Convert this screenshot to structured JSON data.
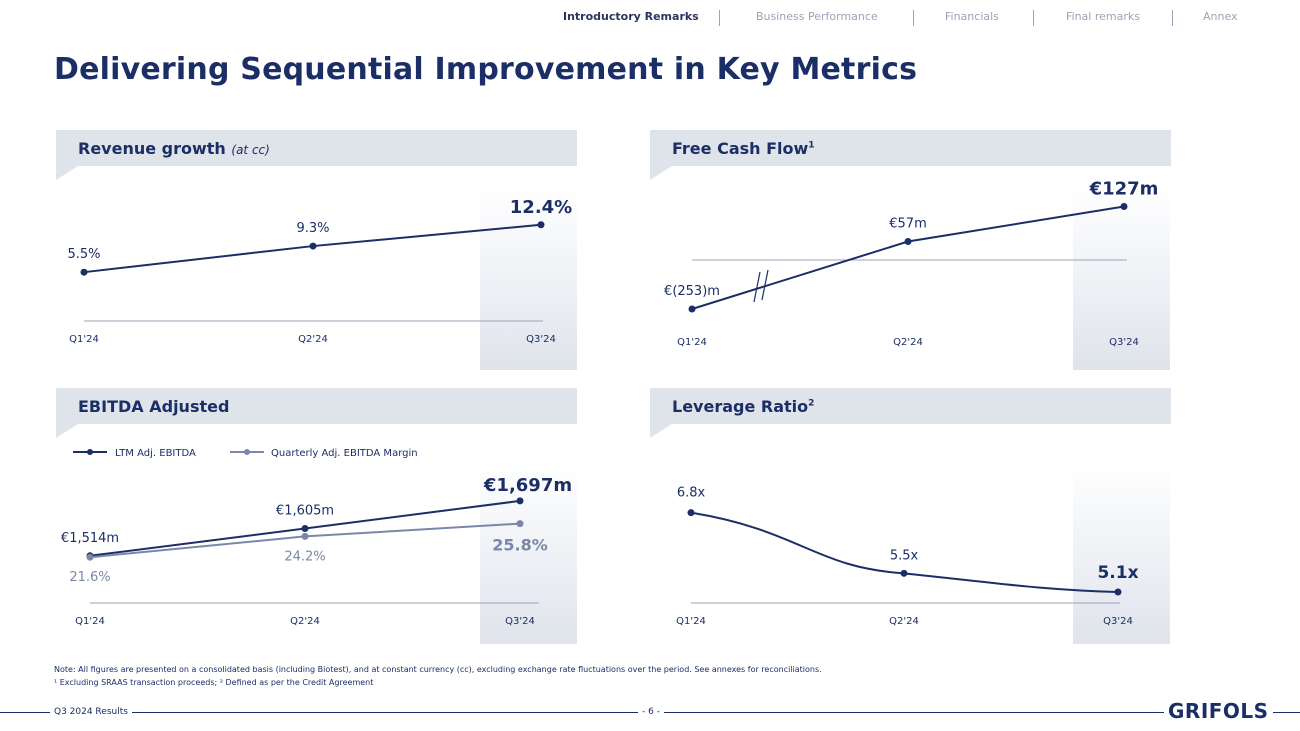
{
  "nav": {
    "items": [
      "Introductory Remarks",
      "Business Performance",
      "Financials",
      "Final remarks",
      "Annex"
    ],
    "active": 0
  },
  "page": {
    "title": "Delivering Sequential Improvement in Key Metrics",
    "notes": {
      "line1": "Note: All figures are presented on a consolidated basis (including Biotest), and at constant currency (cc), excluding exchange rate fluctuations over the period. See annexes for reconciliations.",
      "line2": "¹ Excluding SRAAS transaction proceeds; ² Defined as per the Credit Agreement"
    },
    "footer": {
      "left": "Q3 2024 Results",
      "page_number": "- 6 -",
      "logo": "GRIFOLS"
    }
  },
  "panels": {
    "revenue": {
      "title": "Revenue growth",
      "subtitle": "(at cc)"
    },
    "fcf": {
      "title": "Free Cash Flow",
      "superscript": "1"
    },
    "ebitda": {
      "title": "EBITDA Adjusted"
    },
    "leverage": {
      "title": "Leverage Ratio",
      "superscript": "2"
    }
  },
  "colors": {
    "navy": "#1b2e66",
    "grey_blue": "#7a87a8",
    "axis": "#9aa3b8"
  },
  "chart_data": [
    {
      "id": "revenue",
      "type": "line",
      "categories": [
        "Q1'24",
        "Q2'24",
        "Q3'24"
      ],
      "series": [
        {
          "name": "Revenue growth (at cc)",
          "values": [
            5.5,
            9.3,
            12.4
          ],
          "labels": [
            "5.5%",
            "9.3%",
            "12.4%"
          ]
        }
      ],
      "ylim": [
        0,
        16
      ]
    },
    {
      "id": "fcf",
      "type": "line",
      "categories": [
        "Q1'24",
        "Q2'24",
        "Q3'24"
      ],
      "series": [
        {
          "name": "Free Cash Flow",
          "values": [
            -253,
            57,
            127
          ],
          "labels": [
            "€(253)m",
            "€57m",
            "€127m"
          ]
        }
      ],
      "axis_break": true,
      "ylim": [
        -60,
        160
      ]
    },
    {
      "id": "ebitda",
      "type": "line",
      "categories": [
        "Q1'24",
        "Q2'24",
        "Q3'24"
      ],
      "series": [
        {
          "name": "LTM Adj. EBITDA",
          "values": [
            1514,
            1605,
            1697
          ],
          "labels": [
            "€1,514m",
            "€1,605m",
            "€1,697m"
          ]
        },
        {
          "name": "Quarterly Adj. EBITDA Margin",
          "values": [
            21.6,
            24.2,
            25.8
          ],
          "labels": [
            "21.6%",
            "24.2%",
            "25.8%"
          ]
        }
      ],
      "legend": [
        "LTM Adj. EBITDA",
        "Quarterly Adj. EBITDA Margin"
      ]
    },
    {
      "id": "leverage",
      "type": "line",
      "categories": [
        "Q1'24",
        "Q2'24",
        "Q3'24"
      ],
      "series": [
        {
          "name": "Leverage Ratio",
          "values": [
            6.8,
            5.5,
            5.1
          ],
          "labels": [
            "6.8x",
            "5.5x",
            "5.1x"
          ]
        }
      ],
      "ylim": [
        4.5,
        7.5
      ]
    }
  ]
}
